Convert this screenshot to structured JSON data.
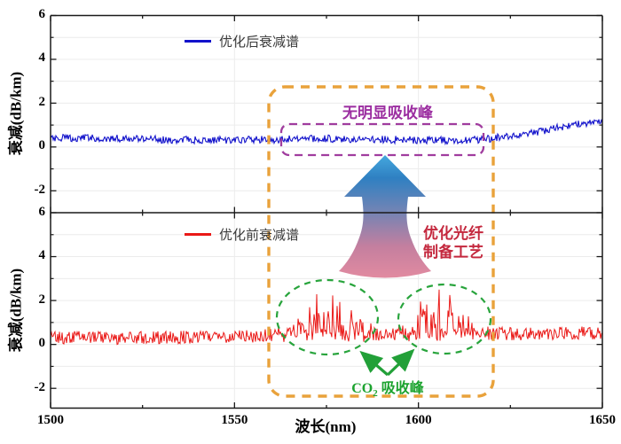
{
  "figure": {
    "background": "#ffffff"
  },
  "chart_data": [
    {
      "type": "line",
      "panel": "top",
      "xlabel": "波长(nm)",
      "ylabel": "衰减(dB/km)",
      "xlim": [
        1500,
        1650
      ],
      "ylim": [
        -3,
        6
      ],
      "x_ticks": [
        1500,
        1550,
        1600,
        1650
      ],
      "y_ticks": [
        -2,
        0,
        2,
        4,
        6
      ],
      "grid": true,
      "legend_position": "top-center",
      "series": [
        {
          "name": "优化后衰减谱",
          "color": "#1212CB",
          "linewidth": 1.1,
          "baseline_keypoints": [
            [
              1500,
              0.42
            ],
            [
              1515,
              0.4
            ],
            [
              1530,
              0.34
            ],
            [
              1545,
              0.31
            ],
            [
              1560,
              0.34
            ],
            [
              1575,
              0.38
            ],
            [
              1590,
              0.34
            ],
            [
              1600,
              0.32
            ],
            [
              1610,
              0.3
            ],
            [
              1618,
              0.35
            ],
            [
              1628,
              0.55
            ],
            [
              1638,
              0.88
            ],
            [
              1645,
              1.08
            ],
            [
              1650,
              1.22
            ]
          ],
          "noise_amplitude": 0.17,
          "seed": 20,
          "spike_clusters": []
        }
      ]
    },
    {
      "type": "line",
      "panel": "bottom",
      "xlabel": "波长(nm)",
      "ylabel": "衰减(dB/km)",
      "xlim": [
        1500,
        1650
      ],
      "ylim": [
        -2.9,
        6
      ],
      "x_ticks": [
        1500,
        1550,
        1600,
        1650
      ],
      "y_ticks": [
        -2,
        0,
        2,
        4,
        6
      ],
      "grid": true,
      "legend_position": "top-center",
      "series": [
        {
          "name": "优化前衰减谱",
          "color": "#EA1917",
          "linewidth": 1.0,
          "baseline_keypoints": [
            [
              1500,
              0.32
            ],
            [
              1520,
              0.3
            ],
            [
              1540,
              0.34
            ],
            [
              1555,
              0.38
            ],
            [
              1570,
              0.42
            ],
            [
              1585,
              0.38
            ],
            [
              1595,
              0.42
            ],
            [
              1610,
              0.46
            ],
            [
              1620,
              0.48
            ],
            [
              1635,
              0.5
            ],
            [
              1650,
              0.52
            ]
          ],
          "noise_amplitude": 0.3,
          "seed": 77,
          "spike_clusters": [
            {
              "center_nm": 1576,
              "sigma_nm": 9,
              "amplitude": 2.0
            },
            {
              "center_nm": 1606,
              "sigma_nm": 8,
              "amplitude": 2.1
            }
          ]
        }
      ]
    }
  ],
  "annotations": {
    "no_peak": {
      "text": "无明显吸收峰",
      "color": "#9B2DA0",
      "box_color": "#A03C9E"
    },
    "process": {
      "line1": "优化光纤",
      "line2": "制备工艺",
      "color": "#C4283E"
    },
    "co2": {
      "prefix": "CO",
      "sub": "2",
      "suffix": " 吸收峰",
      "color": "#1CA32F",
      "ellipse_color": "#28A43C",
      "arrow_color": "#22A038"
    },
    "highlight_box": {
      "color": "#E9A23B"
    },
    "transition_arrow": {
      "gradient_tip": "#45A8DE",
      "gradient_top": "#2F80C2",
      "gradient_mid": "#7484B4",
      "gradient_low": "#C47F9F",
      "gradient_bottom": "#E58CA0"
    }
  }
}
